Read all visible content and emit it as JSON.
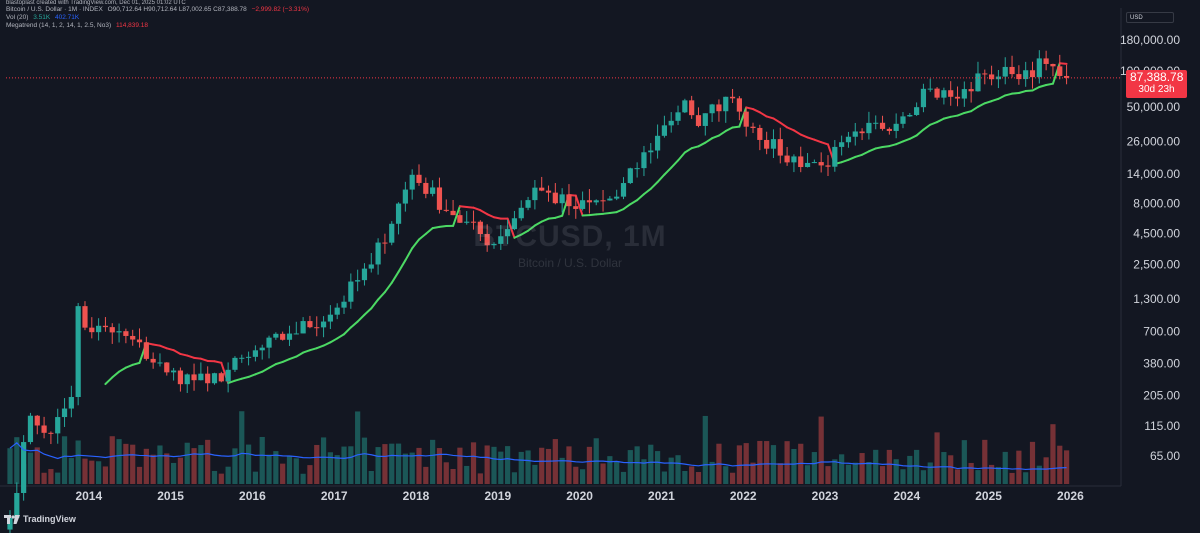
{
  "header": {
    "credit": "blastoplast created with TradingView.com, Dec 01, 2025 01:02 UTC"
  },
  "legend": {
    "symbol": "Bitcoin / U.S. Dollar · 1M · INDEX",
    "ohlc": "O90,712.64 H90,712.64 L87,002.65 C87,388.78",
    "change": "−2,999.82 (−3.31%)",
    "vol_label": "Vol (20)",
    "vol_value": "3.51K",
    "vol_ma": "402.71K",
    "supertrend_label": "Megatrend (14, 1, 2, 14, 1, 2.5, No3)",
    "supertrend_value": "114,839.18"
  },
  "currency": "USD",
  "price_badge": {
    "price": "87,388.78",
    "countdown": "30d 23h"
  },
  "watermark": {
    "symbol": "BTCUSD, 1M",
    "description": "Bitcoin / U.S. Dollar"
  },
  "logo_text": "TradingView",
  "colors": {
    "background": "#131722",
    "up": "#26a69a",
    "down": "#ef5350",
    "trend_up": "#4cd964",
    "trend_down": "#f23645",
    "volume_ma": "#2962ff"
  },
  "chart_data": {
    "type": "candlestick",
    "title": "BTCUSD, 1M",
    "subtitle": "Bitcoin / U.S. Dollar",
    "y_scale": "log",
    "y_ticks": [
      {
        "value": 180000,
        "label": "180,000.00"
      },
      {
        "value": 100000,
        "label": "100,000.00"
      },
      {
        "value": 50000,
        "label": "50,000.00"
      },
      {
        "value": 26000,
        "label": "26,000.00"
      },
      {
        "value": 14000,
        "label": "14,000.00"
      },
      {
        "value": 8000,
        "label": "8,000.00"
      },
      {
        "value": 4500,
        "label": "4,500.00"
      },
      {
        "value": 2500,
        "label": "2,500.00"
      },
      {
        "value": 1300,
        "label": "1,300.00"
      },
      {
        "value": 700,
        "label": "700.00"
      },
      {
        "value": 380,
        "label": "380.00"
      },
      {
        "value": 205,
        "label": "205.00"
      },
      {
        "value": 115,
        "label": "115.00"
      },
      {
        "value": 65,
        "label": "65.00"
      }
    ],
    "x_ticks": [
      {
        "year": 2014,
        "label": "2014"
      },
      {
        "year": 2015,
        "label": "2015"
      },
      {
        "year": 2016,
        "label": "2016"
      },
      {
        "year": 2017,
        "label": "2017"
      },
      {
        "year": 2018,
        "label": "2018"
      },
      {
        "year": 2019,
        "label": "2019"
      },
      {
        "year": 2020,
        "label": "2020"
      },
      {
        "year": 2021,
        "label": "2021"
      },
      {
        "year": 2022,
        "label": "2022"
      },
      {
        "year": 2023,
        "label": "2023"
      },
      {
        "year": 2024,
        "label": "2024"
      },
      {
        "year": 2025,
        "label": "2025"
      },
      {
        "year": 2026,
        "label": "2026"
      }
    ],
    "last_price": 87388.78,
    "candles_monthly_close_approx": [
      {
        "t": "2013-01",
        "c": 20
      },
      {
        "t": "2013-04",
        "c": 140
      },
      {
        "t": "2013-07",
        "c": 100
      },
      {
        "t": "2013-10",
        "c": 200
      },
      {
        "t": "2013-11",
        "c": 1130
      },
      {
        "t": "2013-12",
        "c": 750
      },
      {
        "t": "2014-06",
        "c": 640
      },
      {
        "t": "2014-12",
        "c": 320
      },
      {
        "t": "2015-06",
        "c": 260
      },
      {
        "t": "2015-12",
        "c": 430
      },
      {
        "t": "2016-06",
        "c": 670
      },
      {
        "t": "2016-12",
        "c": 960
      },
      {
        "t": "2017-06",
        "c": 2500
      },
      {
        "t": "2017-12",
        "c": 13800
      },
      {
        "t": "2018-06",
        "c": 6400
      },
      {
        "t": "2018-12",
        "c": 3700
      },
      {
        "t": "2019-06",
        "c": 10800
      },
      {
        "t": "2019-12",
        "c": 7200
      },
      {
        "t": "2020-06",
        "c": 9100
      },
      {
        "t": "2020-12",
        "c": 29000
      },
      {
        "t": "2021-04",
        "c": 57000
      },
      {
        "t": "2021-06",
        "c": 35000
      },
      {
        "t": "2021-10",
        "c": 61000
      },
      {
        "t": "2021-12",
        "c": 46000
      },
      {
        "t": "2022-06",
        "c": 19900
      },
      {
        "t": "2022-12",
        "c": 16500
      },
      {
        "t": "2023-06",
        "c": 30500
      },
      {
        "t": "2023-12",
        "c": 42000
      },
      {
        "t": "2024-03",
        "c": 71000
      },
      {
        "t": "2024-08",
        "c": 59000
      },
      {
        "t": "2024-12",
        "c": 93400
      },
      {
        "t": "2025-04",
        "c": 94000
      },
      {
        "t": "2025-09",
        "c": 114000
      },
      {
        "t": "2025-10",
        "c": 109000
      },
      {
        "t": "2025-11",
        "c": 90700
      },
      {
        "t": "2025-12",
        "c": 87388.78
      }
    ]
  }
}
